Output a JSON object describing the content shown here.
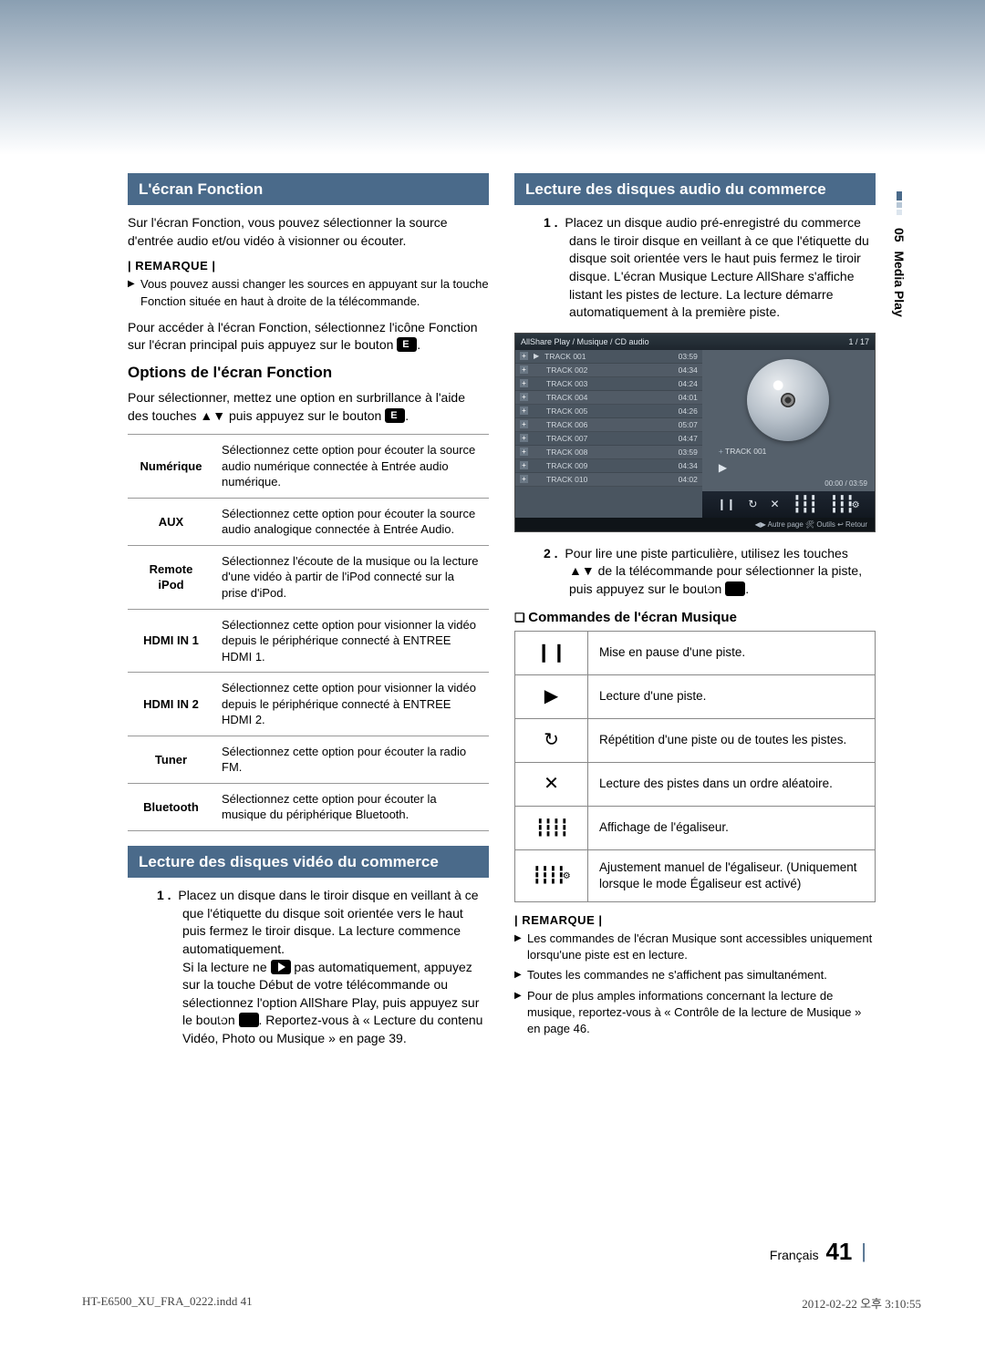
{
  "side_tab": {
    "chapter": "05",
    "name": "Media Play"
  },
  "left": {
    "sec1_title": "L'écran Fonction",
    "intro": "Sur l'écran Fonction, vous pouvez sélectionner la source d'entrée audio et/ou vidéo à visionner ou écouter.",
    "remark_label": "| REMARQUE |",
    "remark_items": [
      "Vous pouvez aussi changer les sources en appuyant sur la touche Fonction située en haut à droite de la télécommande."
    ],
    "after_remark_pre": "Pour accéder à l'écran Fonction, sélectionnez l'icône Fonction sur l'écran principal puis appuyez sur le bouton ",
    "after_remark_post": ".",
    "options_heading": "Options de l'écran Fonction",
    "options_intro_pre": "Pour sélectionner, mettez une option en surbrillance à l'aide des touches ▲▼ puis appuyez sur le bouton ",
    "options_intro_post": ".",
    "fn_rows": [
      {
        "key": "Numérique",
        "desc": "Sélectionnez cette option pour écouter la source audio numérique connectée à Entrée audio numérique."
      },
      {
        "key": "AUX",
        "desc": "Sélectionnez cette option pour écouter la source audio analogique connectée à Entrée Audio."
      },
      {
        "key": "Remote iPod",
        "desc": "Sélectionnez l'écoute de la musique ou la lecture d'une vidéo à partir de l'iPod connecté sur la prise d'iPod."
      },
      {
        "key": "HDMI IN 1",
        "desc": "Sélectionnez cette option pour visionner la vidéo depuis le périphérique connecté à ENTREE HDMI 1."
      },
      {
        "key": "HDMI IN 2",
        "desc": "Sélectionnez cette option pour visionner la vidéo depuis le périphérique connecté à ENTREE HDMI 2."
      },
      {
        "key": "Tuner",
        "desc": "Sélectionnez cette option pour écouter la radio FM."
      },
      {
        "key": "Bluetooth",
        "desc": "Sélectionnez cette option pour écouter la musique du périphérique Bluetooth."
      }
    ],
    "sec2_title": "Lecture des disques vidéo du commerce",
    "step1_num": "1 .",
    "step1_a": "Placez un disque dans le tiroir disque en veillant à ce que l'étiquette du disque soit orientée vers le haut puis fermez le tiroir disque. La lecture commence automatiquement.",
    "step1_b_pre": "Si la lecture ne ",
    "step1_b_mid": " pas automatiquement, appuyez sur la touche Début de votre télécommande ou sélectionnez l'option AllShare Play, puis appuyez sur le bouton ",
    "step1_b_post": ". Reportez-vous à « Lecture du contenu Vidéo, Photo ou Musique » en page 39."
  },
  "right": {
    "sec_title": "Lecture des disques audio du commerce",
    "step1_num": "1 .",
    "step1": "Placez un disque audio pré-enregistré du commerce dans le tiroir disque en veillant à ce que l'étiquette du disque soit orientée vers le haut puis fermez le tiroir disque. L'écran Musique Lecture AllShare s'affiche listant les pistes de lecture. La lecture démarre automatiquement à la première piste.",
    "player": {
      "breadcrumb": "AllShare Play / Musique /    CD audio",
      "counter": "1 / 17",
      "tracks": [
        {
          "name": "TRACK 001",
          "time": "03:59",
          "playing": true
        },
        {
          "name": "TRACK 002",
          "time": "04:34"
        },
        {
          "name": "TRACK 003",
          "time": "04:24"
        },
        {
          "name": "TRACK 004",
          "time": "04:01"
        },
        {
          "name": "TRACK 005",
          "time": "04:26"
        },
        {
          "name": "TRACK 006",
          "time": "05:07"
        },
        {
          "name": "TRACK 007",
          "time": "04:47"
        },
        {
          "name": "TRACK 008",
          "time": "03:59"
        },
        {
          "name": "TRACK 009",
          "time": "04:34"
        },
        {
          "name": "TRACK 010",
          "time": "04:02"
        }
      ],
      "now_playing": "TRACK 001",
      "time": "00:00 / 03:59",
      "footer": "◀▶ Autre page   🛠 Outils   ↩ Retour"
    },
    "step2_num": "2 .",
    "step2_pre": "Pour lire une piste particulière, utilisez les touches ▲▼ de la télécommande pour sélectionner la piste, puis appuyez sur le bouton ",
    "step2_post": ".",
    "mc_heading": "Commandes de l'écran Musique",
    "mc_rows": [
      {
        "icon": "❙❙",
        "desc": "Mise en pause d'une piste."
      },
      {
        "icon": "▶",
        "desc": "Lecture d'une piste."
      },
      {
        "icon": "↻",
        "desc": "Répétition d'une piste ou de toutes les pistes."
      },
      {
        "icon": "✕",
        "desc": "Lecture des pistes dans un ordre aléatoire."
      },
      {
        "icon": "eq",
        "desc": "Affichage de l'égaliseur."
      },
      {
        "icon": "eqg",
        "desc": "Ajustement manuel de l'égaliseur. (Uniquement lorsque le mode Égaliseur est activé)"
      }
    ],
    "remark_label": "| REMARQUE |",
    "remark_items": [
      "Les commandes de l'écran Musique sont accessibles uniquement lorsqu'une piste est en lecture.",
      "Toutes les commandes ne s'affichent pas simultanément.",
      "Pour de plus amples informations concernant la lecture de musique, reportez-vous à « Contrôle de la lecture de Musique » en page 46."
    ]
  },
  "footer": {
    "lang": "Français",
    "page": "41"
  },
  "printline": {
    "left": "HT-E6500_XU_FRA_0222.indd   41",
    "right": "2012-02-22   오후 3:10:55"
  }
}
